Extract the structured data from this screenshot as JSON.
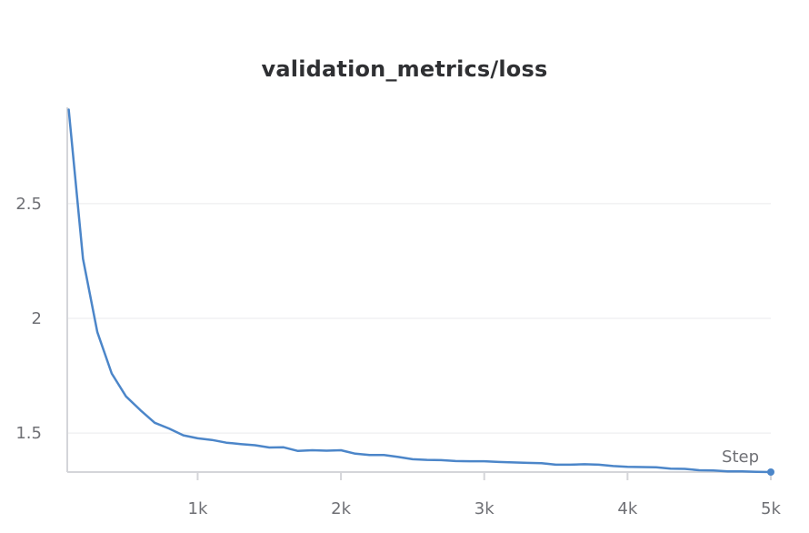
{
  "chart_data": {
    "type": "line",
    "title": "validation_metrics/loss",
    "xlabel": "Step",
    "ylabel": "",
    "xlim": [
      90,
      5000
    ],
    "ylim": [
      1.33,
      2.92
    ],
    "x_ticks": [
      {
        "value": 1000,
        "label": "1k"
      },
      {
        "value": 2000,
        "label": "2k"
      },
      {
        "value": 3000,
        "label": "3k"
      },
      {
        "value": 4000,
        "label": "4k"
      },
      {
        "value": 5000,
        "label": "5k"
      }
    ],
    "y_ticks": [
      {
        "value": 1.5,
        "label": "1.5"
      },
      {
        "value": 2,
        "label": "2"
      },
      {
        "value": 2.5,
        "label": "2.5"
      }
    ],
    "grid": true,
    "color": "#4c86c9",
    "series": [
      {
        "x": [
          100,
          200,
          300,
          400,
          500,
          600,
          700,
          800,
          900,
          1000,
          1100,
          1200,
          1300,
          1400,
          1500,
          1600,
          1700,
          1800,
          1900,
          2000,
          2100,
          2200,
          2300,
          2400,
          2500,
          2600,
          2700,
          2800,
          2900,
          3000,
          3100,
          3200,
          3300,
          3400,
          3500,
          3600,
          3700,
          3800,
          3900,
          4000,
          4100,
          4200,
          4300,
          4400,
          4500,
          4600,
          4700,
          4800,
          4900,
          5000
        ],
        "values": [
          2.91,
          2.26,
          1.94,
          1.76,
          1.66,
          1.6,
          1.545,
          1.52,
          1.49,
          1.477,
          1.47,
          1.458,
          1.452,
          1.447,
          1.437,
          1.438,
          1.422,
          1.425,
          1.423,
          1.425,
          1.41,
          1.404,
          1.404,
          1.396,
          1.386,
          1.383,
          1.382,
          1.378,
          1.377,
          1.377,
          1.374,
          1.372,
          1.37,
          1.369,
          1.362,
          1.362,
          1.364,
          1.362,
          1.356,
          1.353,
          1.352,
          1.351,
          1.345,
          1.344,
          1.338,
          1.337,
          1.333,
          1.333,
          1.331,
          1.33
        ]
      }
    ]
  }
}
